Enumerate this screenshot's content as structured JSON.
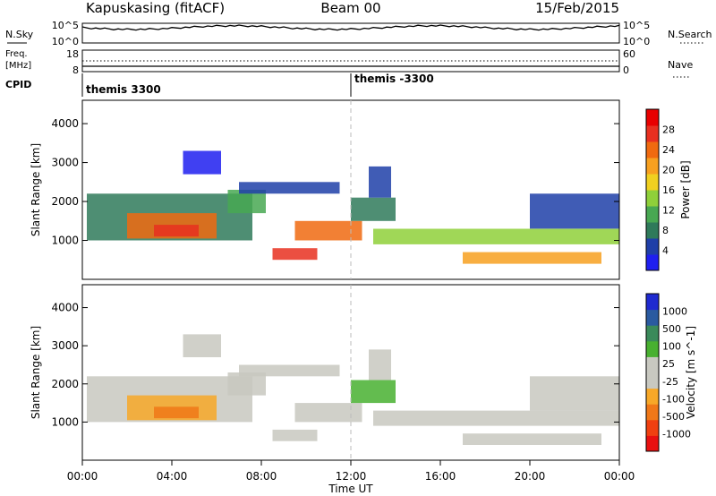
{
  "header": {
    "station": "Kapuskasing (fitACF)",
    "beam": "Beam 00",
    "date": "15/Feb/2015"
  },
  "top_panels": {
    "nsky_label": "N.Sky",
    "nsky_tick_high": "10^5",
    "nsky_tick_low": "10^0",
    "nsearch_label": "N.Search",
    "nsearch_tick_high": "10^5",
    "nsearch_tick_low": "10^0",
    "freq_label": "Freq.",
    "freq_unit": "[MHz]",
    "freq_tick_high": "18",
    "freq_tick_low": "8",
    "nave_label": "Nave",
    "nave_tick_high": "60",
    "nave_tick_low": "0",
    "cpid_label": "CPID",
    "cpid_entries": [
      "themis 3300",
      "themis -3300"
    ]
  },
  "colors": {
    "power": [
      "#1f1ff0",
      "#1f3fa8",
      "#2f7a5a",
      "#48a852",
      "#8fd03a",
      "#f0d020",
      "#f7a020",
      "#f06a10",
      "#e83020",
      "#e80000"
    ],
    "velocity": [
      "#e81010",
      "#f04010",
      "#f07818",
      "#f7a828",
      "#c8c8c0",
      "#c8c8c0",
      "#48b030",
      "#3a8a5a",
      "#2a5aa0",
      "#1f2ad0"
    ]
  },
  "chart_data": [
    {
      "type": "heatmap",
      "name": "power",
      "ylabel": "Slant Range [km]",
      "ylim": [
        0,
        4600
      ],
      "y_ticks": [
        "1000",
        "2000",
        "3000",
        "4000"
      ],
      "colorbar_label": "Power [dB]",
      "colorbar_ticks": [
        "4",
        "8",
        "12",
        "16",
        "20",
        "24",
        "28"
      ],
      "colorbar_range": [
        0,
        32
      ],
      "regions": [
        {
          "t": [
            0.2,
            7.6
          ],
          "r": [
            1000,
            2200
          ],
          "v": 7
        },
        {
          "t": [
            2.0,
            6.0
          ],
          "r": [
            1050,
            1700
          ],
          "v": 23
        },
        {
          "t": [
            3.2,
            5.2
          ],
          "r": [
            1100,
            1400
          ],
          "v": 27
        },
        {
          "t": [
            6.5,
            8.2
          ],
          "r": [
            1700,
            2300
          ],
          "v": 10
        },
        {
          "t": [
            7.0,
            11.5
          ],
          "r": [
            2200,
            2500
          ],
          "v": 5
        },
        {
          "t": [
            8.5,
            10.5
          ],
          "r": [
            500,
            800
          ],
          "v": 26
        },
        {
          "t": [
            9.5,
            12.5
          ],
          "r": [
            1000,
            1500
          ],
          "v": 24
        },
        {
          "t": [
            12.0,
            14.0
          ],
          "r": [
            1500,
            2100
          ],
          "v": 9
        },
        {
          "t": [
            12.8,
            13.8
          ],
          "r": [
            2100,
            2900
          ],
          "v": 6
        },
        {
          "t": [
            13.0,
            24.0
          ],
          "r": [
            900,
            1300
          ],
          "v": 14
        },
        {
          "t": [
            17.0,
            23.2
          ],
          "r": [
            400,
            700
          ],
          "v": 20
        },
        {
          "t": [
            20.0,
            24.0
          ],
          "r": [
            1300,
            2200
          ],
          "v": 4
        },
        {
          "t": [
            4.5,
            6.2
          ],
          "r": [
            2700,
            3300
          ],
          "v": 3
        }
      ]
    },
    {
      "type": "heatmap",
      "name": "velocity",
      "ylabel": "Slant Range [km]",
      "ylim": [
        0,
        4600
      ],
      "y_ticks": [
        "1000",
        "2000",
        "3000",
        "4000"
      ],
      "colorbar_label": "Velocity [m s^-1]",
      "colorbar_ticks": [
        "-1000",
        "-500",
        "-100",
        "-25",
        "25",
        "100",
        "500",
        "1000"
      ],
      "colorbar_range": [
        -1200,
        1200
      ],
      "regions": [
        {
          "t": [
            0.2,
            7.6
          ],
          "r": [
            1000,
            2200
          ],
          "v": 0
        },
        {
          "t": [
            2.0,
            6.0
          ],
          "r": [
            1050,
            1700
          ],
          "v": -300
        },
        {
          "t": [
            3.2,
            5.2
          ],
          "r": [
            1100,
            1400
          ],
          "v": -700
        },
        {
          "t": [
            6.5,
            8.2
          ],
          "r": [
            1700,
            2300
          ],
          "v": 0
        },
        {
          "t": [
            7.0,
            11.5
          ],
          "r": [
            2200,
            2500
          ],
          "v": 0
        },
        {
          "t": [
            8.5,
            10.5
          ],
          "r": [
            500,
            800
          ],
          "v": 150
        },
        {
          "t": [
            9.5,
            12.5
          ],
          "r": [
            1000,
            1500
          ],
          "v": 200
        },
        {
          "t": [
            12.0,
            14.0
          ],
          "r": [
            1500,
            2100
          ],
          "v": 300
        },
        {
          "t": [
            12.8,
            13.8
          ],
          "r": [
            2100,
            2900
          ],
          "v": 0
        },
        {
          "t": [
            13.0,
            24.0
          ],
          "r": [
            900,
            1300
          ],
          "v": 0
        },
        {
          "t": [
            17.0,
            23.2
          ],
          "r": [
            400,
            700
          ],
          "v": 0
        },
        {
          "t": [
            20.0,
            24.0
          ],
          "r": [
            1300,
            2200
          ],
          "v": 0
        },
        {
          "t": [
            4.5,
            6.2
          ],
          "r": [
            2700,
            3300
          ],
          "v": -150
        }
      ]
    }
  ],
  "x_axis": {
    "label": "Time UT",
    "ticks": [
      "00:00",
      "04:00",
      "08:00",
      "12:00",
      "16:00",
      "20:00",
      "00:00"
    ]
  }
}
